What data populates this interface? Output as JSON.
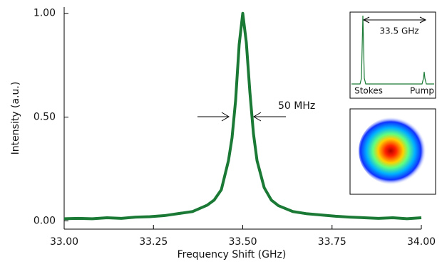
{
  "chart_data": {
    "type": "line",
    "xlabel": "Frequency Shift (GHz)",
    "ylabel": "Intensity (a.u.)",
    "x": [
      33.0,
      33.04,
      33.08,
      33.12,
      33.16,
      33.2,
      33.24,
      33.28,
      33.32,
      33.36,
      33.4,
      33.42,
      33.44,
      33.46,
      33.47,
      33.48,
      33.49,
      33.5,
      33.51,
      33.52,
      33.53,
      33.54,
      33.56,
      33.58,
      33.6,
      33.64,
      33.68,
      33.72,
      33.76,
      33.8,
      33.84,
      33.88,
      33.92,
      33.96,
      34.0
    ],
    "series": [
      {
        "color": "#1a7a35",
        "values": [
          0.01,
          0.012,
          0.01,
          0.015,
          0.012,
          0.018,
          0.02,
          0.025,
          0.035,
          0.045,
          0.075,
          0.1,
          0.15,
          0.29,
          0.4,
          0.58,
          0.85,
          1.0,
          0.86,
          0.62,
          0.42,
          0.29,
          0.16,
          0.1,
          0.073,
          0.045,
          0.034,
          0.028,
          0.022,
          0.018,
          0.015,
          0.012,
          0.015,
          0.01,
          0.015
        ]
      }
    ],
    "xlim": [
      33.0,
      34.0
    ],
    "xticks": [
      {
        "value": 33.0,
        "label": "33.00"
      },
      {
        "value": 33.25,
        "label": "33.25"
      },
      {
        "value": 33.5,
        "label": "33.50"
      },
      {
        "value": 33.75,
        "label": "33.75"
      },
      {
        "value": 34.0,
        "label": "34.00"
      }
    ],
    "ylim": [
      -0.04,
      1.03
    ],
    "yticks": [
      {
        "value": 0,
        "label": "0.00"
      },
      {
        "value": 0.5,
        "label": "0.50"
      },
      {
        "value": 1,
        "label": "1.00"
      }
    ],
    "annotations": [
      "50 MHz",
      "33.5 GHz",
      "Stokes",
      "Pump"
    ]
  }
}
